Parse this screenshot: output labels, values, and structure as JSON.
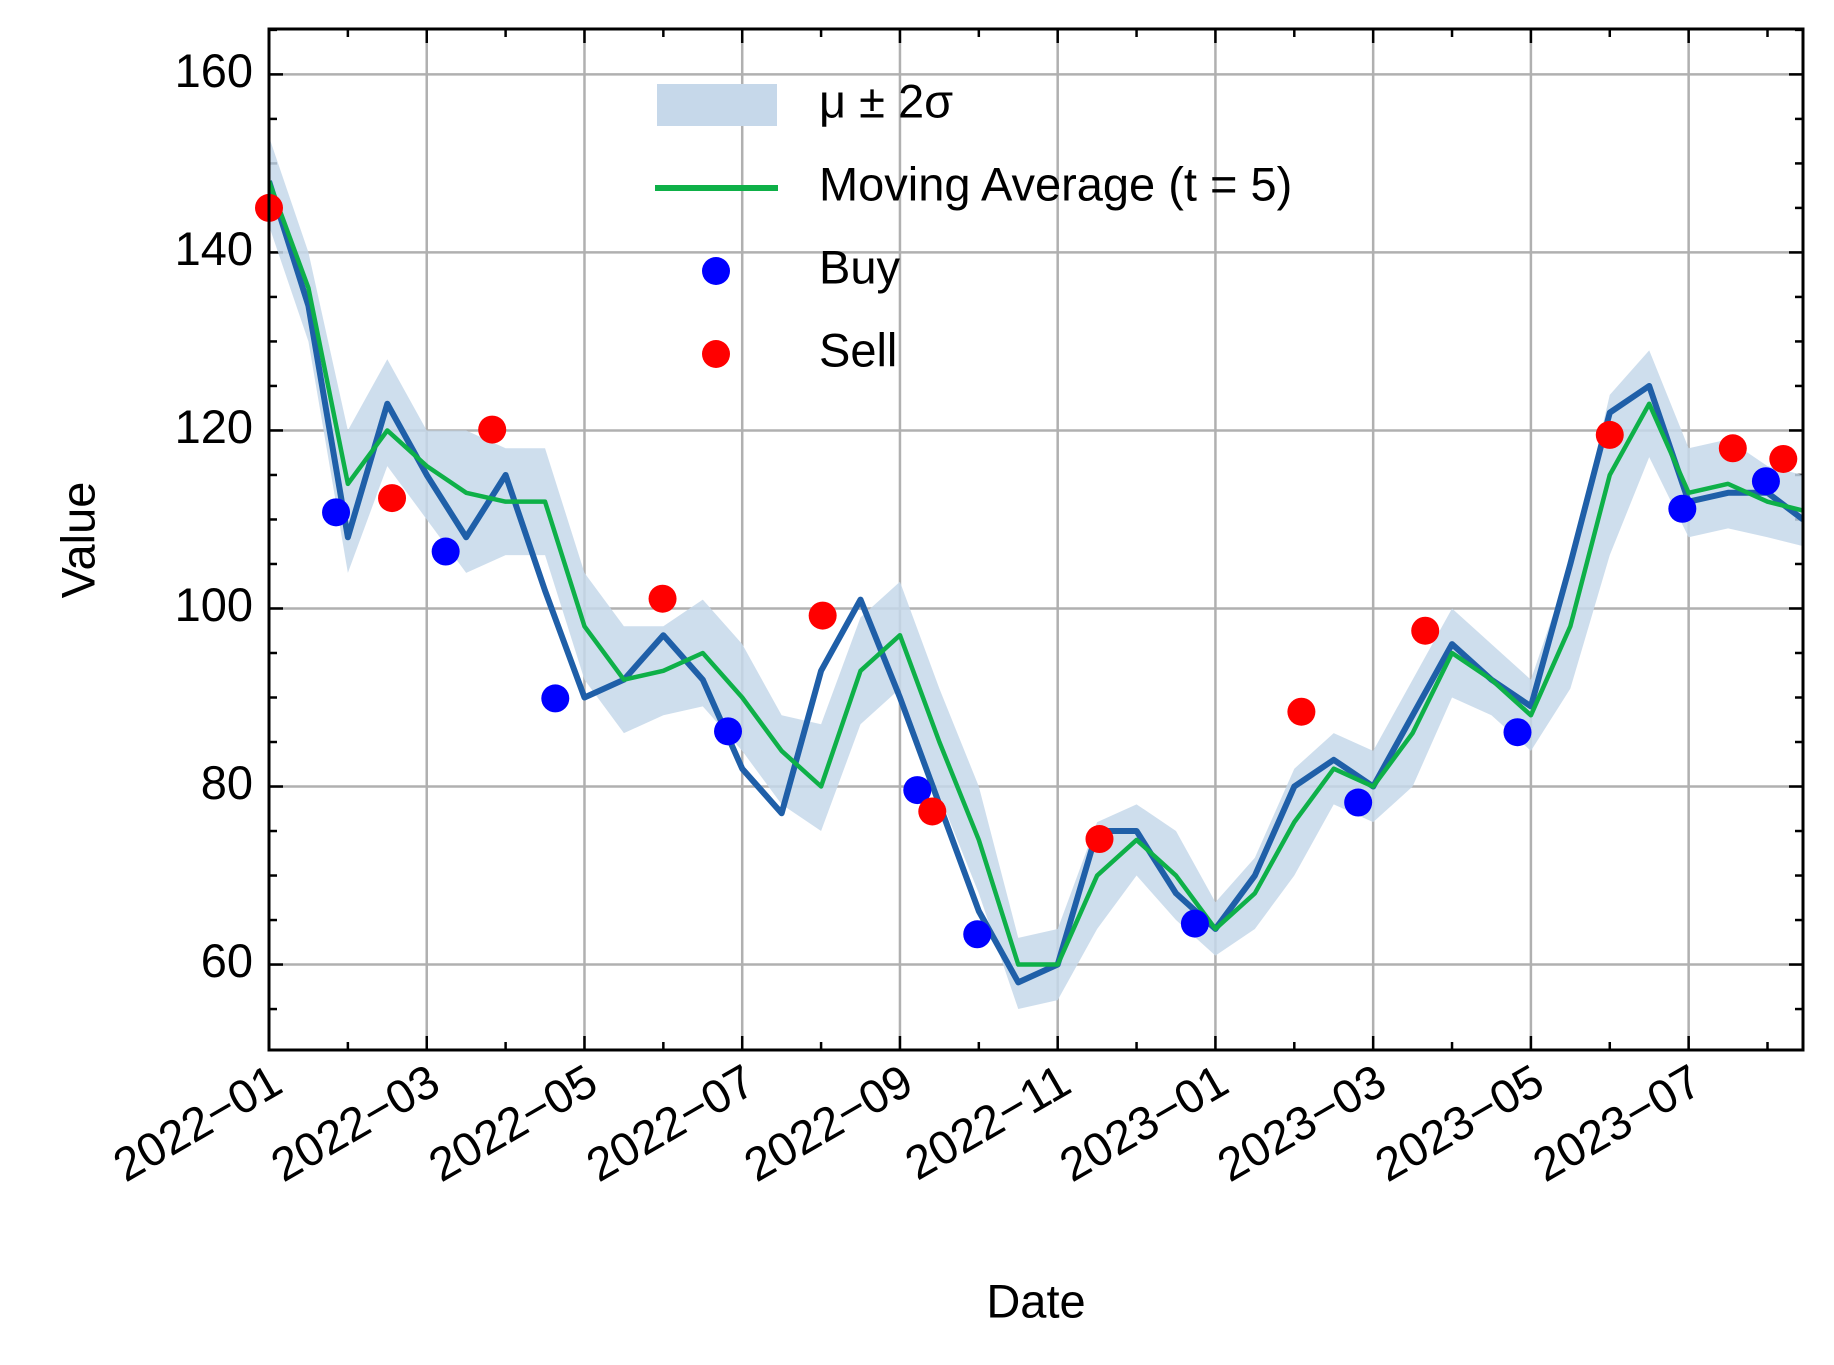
{
  "chart_data": {
    "type": "line",
    "xlabel": "Date",
    "ylabel": "Value",
    "xlim": [
      0,
      19.45
    ],
    "ylim": [
      50.4,
      165.1
    ],
    "xticks": [
      {
        "value": 0,
        "label": "2022−01"
      },
      {
        "value": 2,
        "label": "2022−03"
      },
      {
        "value": 4,
        "label": "2022−05"
      },
      {
        "value": 6,
        "label": "2022−07"
      },
      {
        "value": 8,
        "label": "2022−09"
      },
      {
        "value": 10,
        "label": "2022−11"
      },
      {
        "value": 12,
        "label": "2023−01"
      },
      {
        "value": 14,
        "label": "2023−03"
      },
      {
        "value": 16,
        "label": "2023−05"
      },
      {
        "value": 18,
        "label": "2023−07"
      }
    ],
    "xminorticks": [
      1,
      3,
      5,
      7,
      9,
      11,
      13,
      15,
      17,
      19
    ],
    "yticks": [
      60,
      80,
      100,
      120,
      140,
      160
    ],
    "yminorticks": [
      55,
      65,
      70,
      75,
      85,
      90,
      95,
      105,
      110,
      115,
      125,
      130,
      135,
      145,
      150,
      155,
      165
    ],
    "grid": true,
    "legend": "upper center",
    "x": [
      0,
      0.5,
      1,
      1.5,
      2,
      2.5,
      3,
      3.5,
      4,
      4.5,
      5,
      5.5,
      6,
      6.5,
      7,
      7.5,
      8,
      8.5,
      9,
      9.5,
      10,
      10.5,
      11,
      11.5,
      12,
      12.5,
      13,
      13.5,
      14,
      14.5,
      15,
      15.5,
      16,
      16.5,
      17,
      17.5,
      18,
      18.5,
      19,
      19.45
    ],
    "series": [
      {
        "style": "band",
        "name": "μ ± 2σ",
        "color": "#c6d8ea",
        "lower": [
          143,
          130,
          104,
          116,
          110,
          104,
          106,
          106,
          92,
          86,
          88,
          89,
          84,
          78,
          75,
          87,
          91,
          79,
          68,
          55,
          56,
          64,
          70,
          65,
          61,
          64,
          70,
          78,
          76,
          80,
          90,
          88,
          84,
          91,
          106,
          117,
          108,
          109,
          108,
          107
        ],
        "upper": [
          153,
          140,
          120,
          128,
          120,
          120,
          118,
          118,
          104,
          98,
          98,
          101,
          96,
          88,
          87,
          99,
          103,
          91,
          80,
          63,
          64,
          76,
          78,
          75,
          67,
          72,
          82,
          86,
          84,
          92,
          100,
          96,
          92,
          105,
          124,
          129,
          118,
          119,
          116,
          115
        ]
      },
      {
        "style": "line",
        "color": "#1f5fa8",
        "values": [
          148,
          134,
          108,
          123,
          115,
          108,
          115,
          102,
          90,
          92,
          97,
          92,
          82,
          77,
          93,
          101,
          90,
          78,
          66,
          58,
          60,
          75,
          75,
          68,
          64,
          70,
          80,
          83,
          80,
          88,
          96,
          92,
          89,
          105,
          122,
          125,
          112,
          113,
          113,
          110
        ]
      },
      {
        "style": "line",
        "name": "Moving Average (t = 5)",
        "color": "#0eb048",
        "values": [
          148,
          136,
          114,
          120,
          116,
          113,
          112,
          112,
          98,
          92,
          93,
          95,
          90,
          84,
          80,
          93,
          97,
          85,
          74,
          60,
          60,
          70,
          74,
          70,
          64,
          68,
          76,
          82,
          80,
          86,
          95,
          92,
          88,
          98,
          115,
          123,
          113,
          114,
          112,
          111
        ]
      },
      {
        "style": "points",
        "name": "Buy",
        "color": "#0000ff",
        "x": [
          0.85,
          2.24,
          3.63,
          5.82,
          8.22,
          8.98,
          11.74,
          13.81,
          15.83,
          17.92,
          18.98
        ],
        "values": [
          110.8,
          106.4,
          89.9,
          86.2,
          79.6,
          63.4,
          64.6,
          78.2,
          86.1,
          111.2,
          114.3
        ]
      },
      {
        "style": "points",
        "name": "Sell",
        "color": "#ff0000",
        "x": [
          0,
          1.56,
          2.83,
          4.99,
          7.02,
          8.41,
          10.53,
          13.09,
          14.66,
          17.0,
          18.56,
          19.2
        ],
        "values": [
          145,
          112.4,
          120.1,
          101.1,
          99.2,
          77.2,
          74.1,
          88.4,
          97.5,
          119.5,
          118.0,
          116.8
        ]
      }
    ]
  }
}
